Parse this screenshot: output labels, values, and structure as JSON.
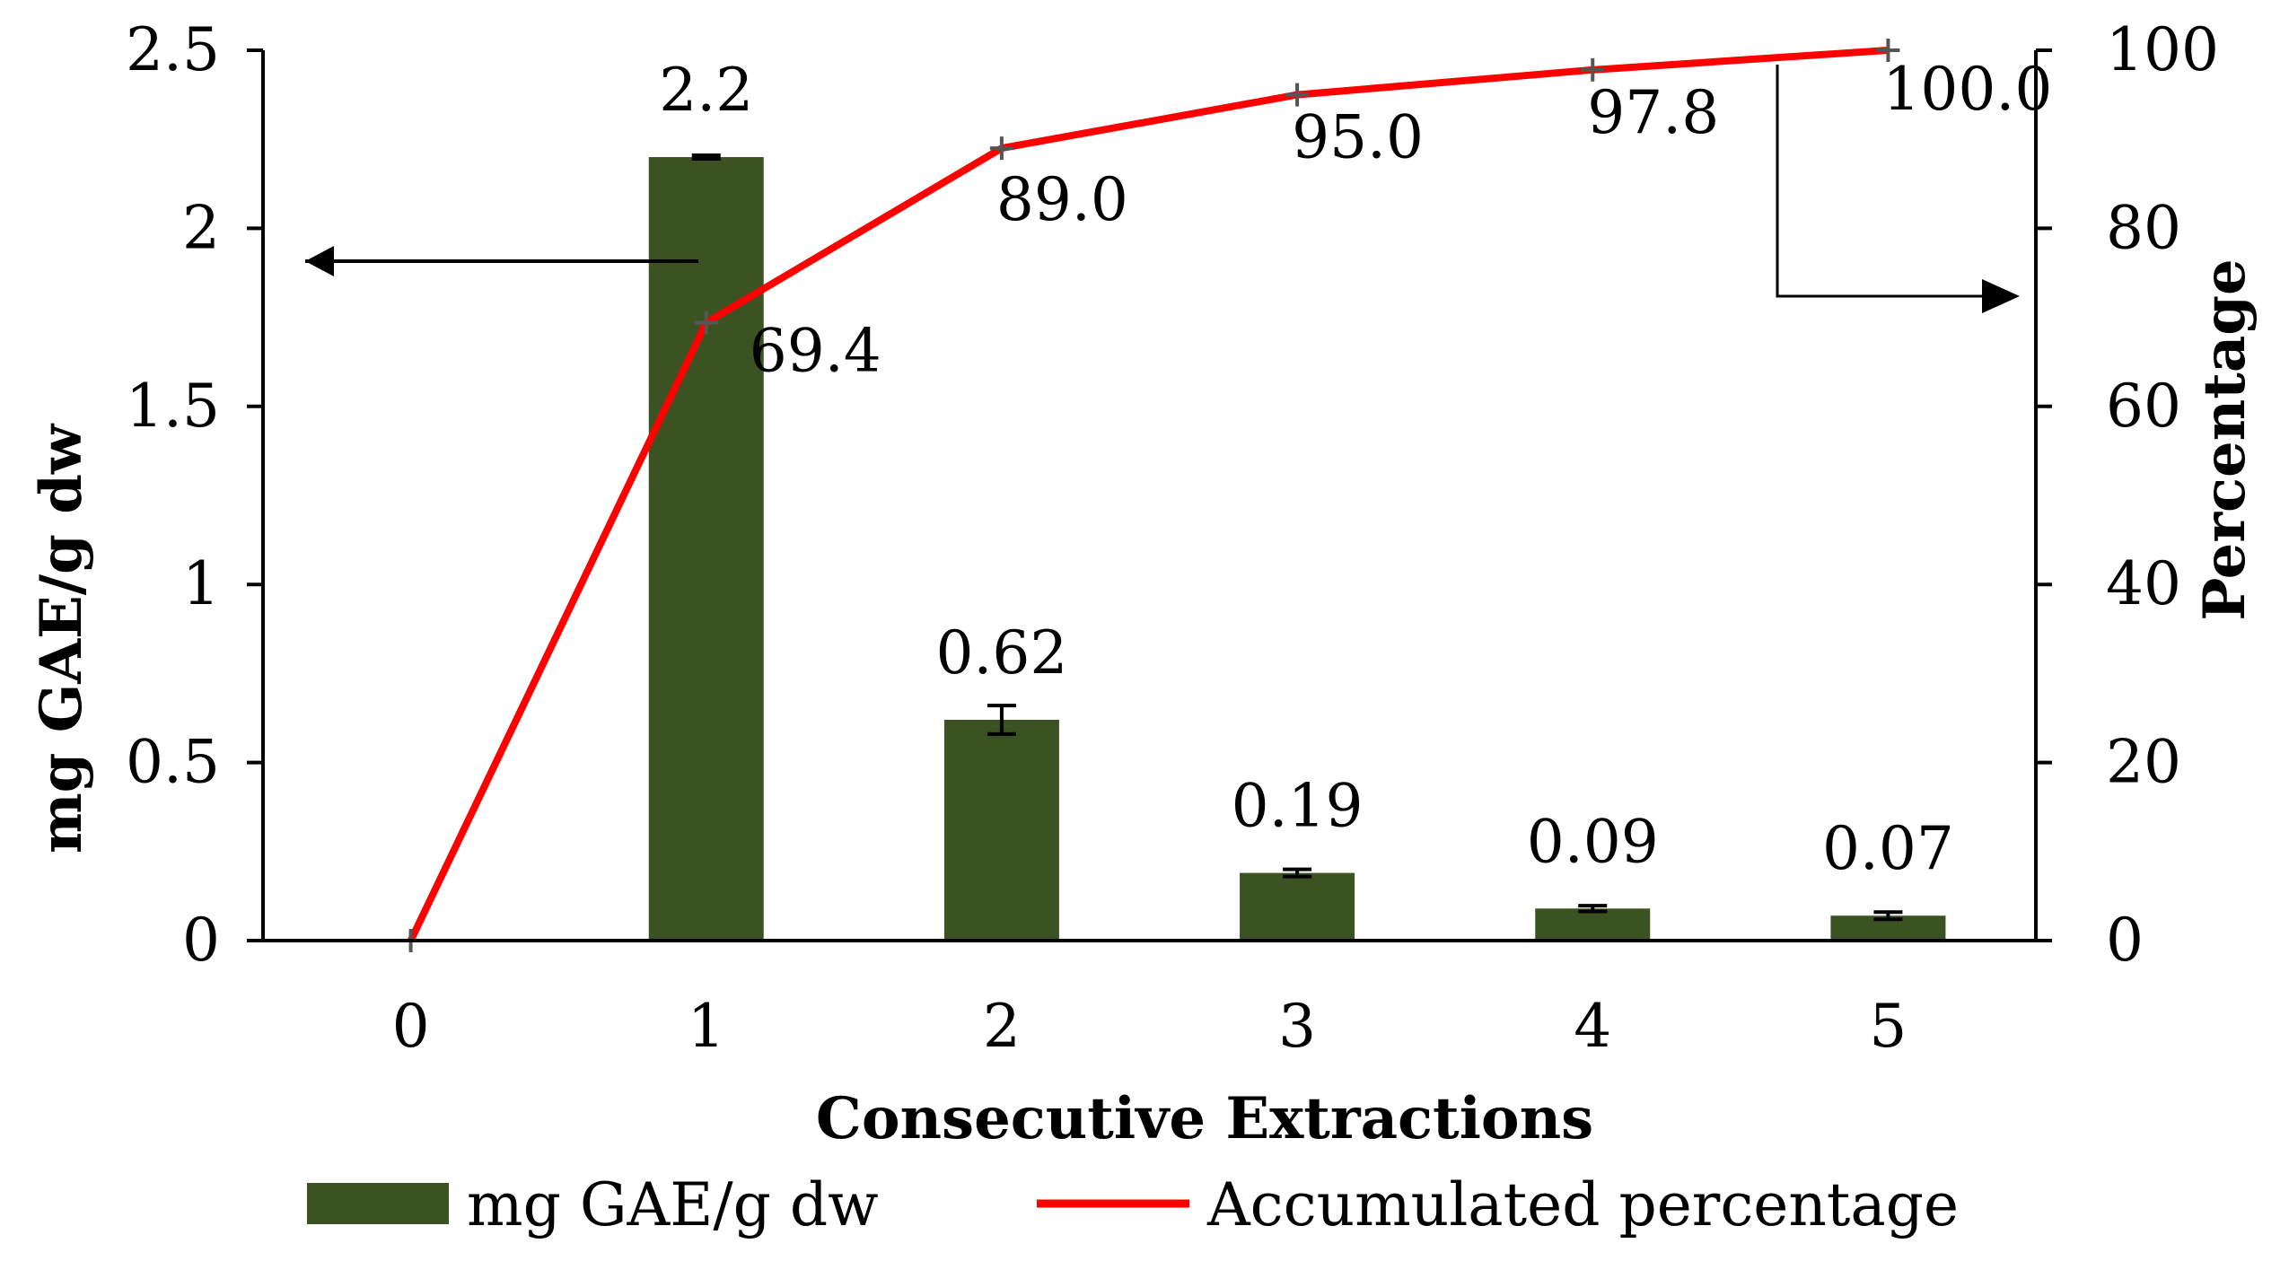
{
  "chart_data": {
    "type": "bar+line",
    "categories": [
      "0",
      "1",
      "2",
      "3",
      "4",
      "5"
    ],
    "bars": {
      "name": "mg GAE/g dw",
      "values": [
        0,
        2.2,
        0.62,
        0.19,
        0.09,
        0.07
      ],
      "labels": [
        "",
        "2.2",
        "0.62",
        "0.19",
        "0.09",
        "0.07"
      ],
      "errors": [
        0,
        0.005,
        0.04,
        0.01,
        0.008,
        0.01
      ],
      "color": "#3b5323"
    },
    "line": {
      "name": "Accumulated percentage",
      "values": [
        0,
        69.4,
        89.0,
        95.0,
        97.8,
        100.0
      ],
      "labels": [
        "",
        "69.4",
        "89.0",
        "95.0",
        "97.8",
        "100.0"
      ],
      "color": "#ff0000"
    },
    "y_left": {
      "label": "mg GAE/g dw",
      "ylim": [
        0,
        2.5
      ],
      "ticks": [
        "0",
        "0.5",
        "1",
        "1.5",
        "2",
        "2.5"
      ]
    },
    "y_right": {
      "label": "Percentage",
      "ylim": [
        0,
        100
      ],
      "ticks": [
        "0",
        "20",
        "40",
        "60",
        "80",
        "100"
      ]
    },
    "xlabel": "Consecutive Extractions",
    "legend_position": "bottom"
  }
}
